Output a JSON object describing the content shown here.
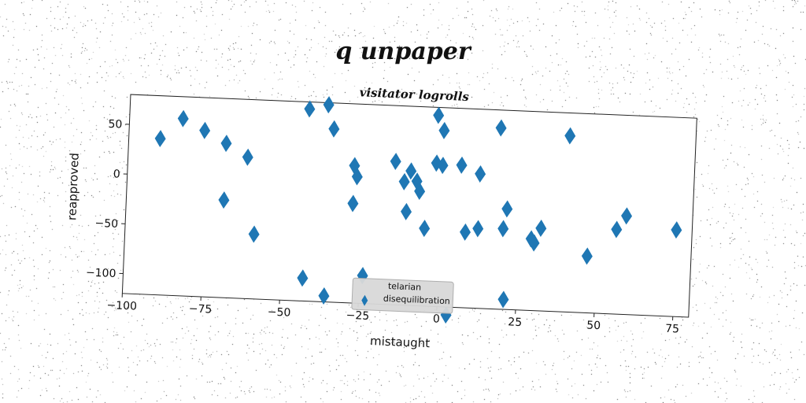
{
  "title": "q unpaper",
  "chart_data": {
    "type": "scatter",
    "title": "visitator logrolls",
    "xlabel": "mistaught",
    "ylabel": "reapproved",
    "xlim": [
      -100,
      80
    ],
    "ylim": [
      -120,
      80
    ],
    "x_ticks": [
      -100,
      -75,
      -50,
      -25,
      0,
      25,
      50,
      75
    ],
    "x_tick_labels": [
      "−100",
      "−75",
      "−50",
      "−25",
      "0",
      "25",
      "50",
      "75"
    ],
    "y_ticks": [
      50,
      0,
      -50,
      -100
    ],
    "y_tick_labels": [
      "50",
      "0",
      "−50",
      "−100"
    ],
    "grid": false,
    "legend_position": "bottom-center",
    "marker": "diamond",
    "color": "#1f77b4",
    "series": [
      {
        "name": "telarian disequilibration",
        "points": [
          [
            -90,
            37
          ],
          [
            -83,
            58
          ],
          [
            -76,
            47
          ],
          [
            -69,
            35
          ],
          [
            -62,
            22
          ],
          [
            -69,
            -22
          ],
          [
            -59,
            -55
          ],
          [
            -43,
            73
          ],
          [
            -37,
            78
          ],
          [
            -35,
            54
          ],
          [
            -43,
            -97
          ],
          [
            -36,
            -114
          ],
          [
            -28,
            18
          ],
          [
            -27,
            7
          ],
          [
            -28,
            -20
          ],
          [
            -24,
            -92
          ],
          [
            -15,
            24
          ],
          [
            -12,
            4
          ],
          [
            -10,
            15
          ],
          [
            -8,
            5
          ],
          [
            -7,
            -5
          ],
          [
            -11,
            -26
          ],
          [
            -5,
            -42
          ],
          [
            -2,
            72
          ],
          [
            0,
            57
          ],
          [
            -2,
            24
          ],
          [
            0,
            22
          ],
          [
            6,
            23
          ],
          [
            12,
            15
          ],
          [
            8,
            -44
          ],
          [
            12,
            -40
          ],
          [
            18,
            62
          ],
          [
            21,
            -19
          ],
          [
            20,
            -39
          ],
          [
            21,
            -110
          ],
          [
            29,
            -48
          ],
          [
            30,
            -52
          ],
          [
            32,
            -37
          ],
          [
            40,
            57
          ],
          [
            47,
            -63
          ],
          [
            56,
            -35
          ],
          [
            59,
            -21
          ],
          [
            75,
            -33
          ],
          [
            3,
            -128
          ]
        ]
      }
    ]
  }
}
